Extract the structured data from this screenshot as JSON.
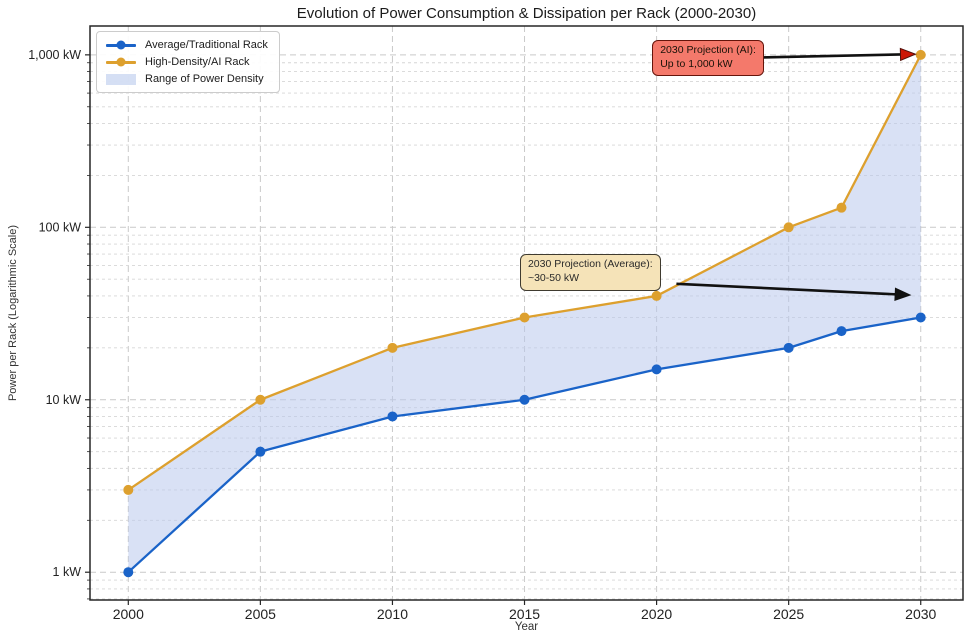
{
  "chart_data": {
    "type": "line",
    "title": "Evolution of Power Consumption & Dissipation per Rack (2000-2030)",
    "xlabel": "Year",
    "ylabel": "Power per Rack (Logarithmic Scale)",
    "yscale": "log",
    "grid": true,
    "legend_position": "upper left",
    "xlim": [
      1998.55,
      2031.6
    ],
    "ylim": [
      0.69,
      1470
    ],
    "x": [
      2000,
      2005,
      2010,
      2015,
      2020,
      2025,
      2027,
      2030
    ],
    "series": [
      {
        "name": "Average/Traditional Rack",
        "color": "#1a63c8",
        "marker": "circle",
        "values": [
          1,
          5,
          8,
          10,
          15,
          20,
          25,
          30
        ]
      },
      {
        "name": "High-Density/AI Rack",
        "color": "#dda02e",
        "marker": "circle",
        "values": [
          3,
          10,
          20,
          30,
          40,
          100,
          130,
          1000
        ]
      }
    ],
    "band": {
      "name": "Range of Power Density",
      "color": "#b9c9ec",
      "between": [
        "Average/Traditional Rack",
        "High-Density/AI Rack"
      ]
    },
    "x_ticks": [
      {
        "value": 2000,
        "label": "2000"
      },
      {
        "value": 2005,
        "label": "2005"
      },
      {
        "value": 2010,
        "label": "2010"
      },
      {
        "value": 2015,
        "label": "2015"
      },
      {
        "value": 2020,
        "label": "2020"
      },
      {
        "value": 2025,
        "label": "2025"
      },
      {
        "value": 2030,
        "label": "2030"
      }
    ],
    "y_ticks": [
      {
        "value": 1,
        "label": "1 kW"
      },
      {
        "value": 10,
        "label": "10 kW"
      },
      {
        "value": 100,
        "label": "100 kW"
      },
      {
        "value": 1000,
        "label": "1,000 kW"
      }
    ],
    "annotations": [
      {
        "id": "ai-projection",
        "line1": "2030 Projection (AI):",
        "line2": "Up to 1,000 kW",
        "box_color": "#f4796b",
        "border_color": "#66140b",
        "text_color": "#1a1208",
        "box_fx": 0.644,
        "box_fy": 0.024,
        "arrow": {
          "from_x": 2023.9,
          "from_y": 965,
          "to_x": 2029.8,
          "to_y": 1010,
          "shaft_color": "#111111",
          "head_color": "#cc1605",
          "head_stroke": "#50100a"
        }
      },
      {
        "id": "average-projection",
        "line1": "2030 Projection (Average):",
        "line2": "~30-50 kW",
        "box_color": "#f5e3b8",
        "border_color": "#3f3b30",
        "text_color": "#2a2a2a",
        "box_fx": 0.4925,
        "box_fy": 0.397,
        "arrow": {
          "from_x": 2020.75,
          "from_y": 47,
          "to_x": 2029.6,
          "to_y": 40.5,
          "shaft_color": "#111111",
          "head_color": "#111111",
          "head_stroke": "#111111"
        }
      }
    ]
  }
}
